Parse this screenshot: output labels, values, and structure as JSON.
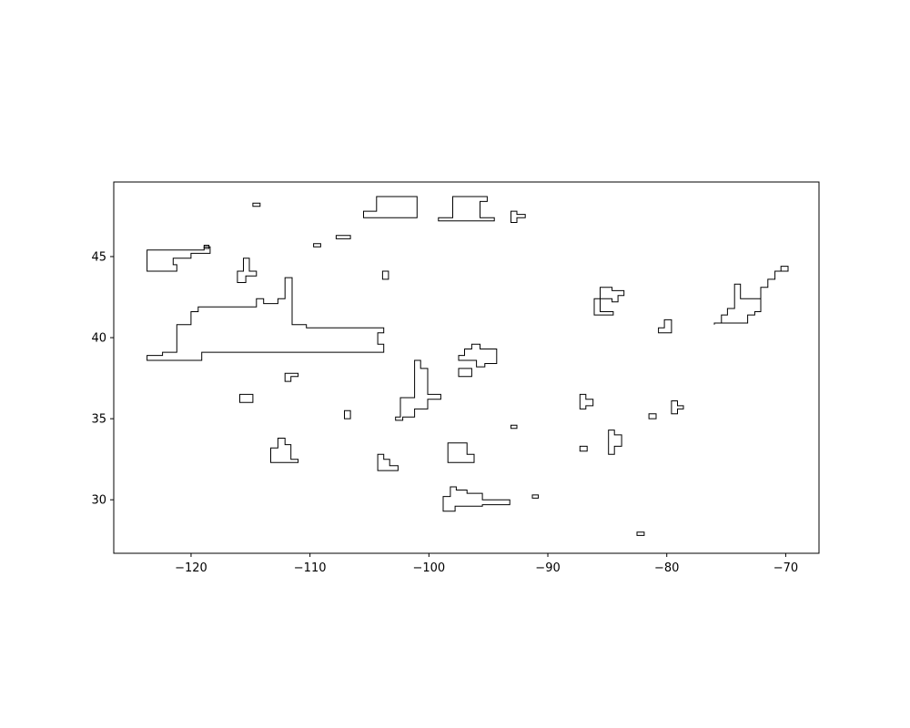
{
  "chart_data": {
    "type": "map",
    "title": "",
    "xlabel": "",
    "ylabel": "",
    "xlim": [
      -126.5,
      -67.2
    ],
    "ylim": [
      26.7,
      49.6
    ],
    "xticks": [
      -120,
      -110,
      -100,
      -90,
      -80,
      -70
    ],
    "yticks": [
      30,
      35,
      40,
      45
    ],
    "xtick_labels": [
      "−120",
      "−110",
      "−100",
      "−90",
      "−80",
      "−70"
    ],
    "ytick_labels": [
      "30",
      "35",
      "40",
      "45"
    ],
    "grid": false,
    "line_color": "#000000",
    "background": "#ffffff",
    "shapes": [
      [
        [
          -123.7,
          45.4
        ],
        [
          -118.9,
          45.4
        ],
        [
          -118.9,
          45.6
        ],
        [
          -118.4,
          45.6
        ],
        [
          -118.4,
          45.2
        ],
        [
          -120.0,
          45.2
        ],
        [
          -120.0,
          44.9
        ],
        [
          -121.5,
          44.9
        ],
        [
          -121.5,
          44.5
        ],
        [
          -121.2,
          44.5
        ],
        [
          -121.2,
          44.1
        ],
        [
          -123.7,
          44.1
        ]
      ],
      [
        [
          -118.5,
          45.7
        ],
        [
          -118.5,
          45.5
        ],
        [
          -118.9,
          45.5
        ],
        [
          -118.9,
          45.7
        ]
      ],
      [
        [
          -114.8,
          48.3
        ],
        [
          -114.2,
          48.3
        ],
        [
          -114.2,
          48.1
        ],
        [
          -114.8,
          48.1
        ]
      ],
      [
        [
          -116.1,
          44.1
        ],
        [
          -115.6,
          44.1
        ],
        [
          -115.6,
          44.9
        ],
        [
          -115.1,
          44.9
        ],
        [
          -115.1,
          44.1
        ],
        [
          -114.5,
          44.1
        ],
        [
          -114.5,
          43.8
        ],
        [
          -115.4,
          43.8
        ],
        [
          -115.4,
          43.4
        ],
        [
          -116.1,
          43.4
        ]
      ],
      [
        [
          -123.7,
          38.9
        ],
        [
          -122.4,
          38.9
        ],
        [
          -122.4,
          39.1
        ],
        [
          -121.2,
          39.1
        ],
        [
          -121.2,
          40.8
        ],
        [
          -120.0,
          40.8
        ],
        [
          -120.0,
          41.6
        ],
        [
          -119.4,
          41.6
        ],
        [
          -119.4,
          41.9
        ],
        [
          -114.5,
          41.9
        ],
        [
          -114.5,
          42.4
        ],
        [
          -113.9,
          42.4
        ],
        [
          -113.9,
          42.1
        ],
        [
          -112.7,
          42.1
        ],
        [
          -112.7,
          42.4
        ],
        [
          -112.1,
          42.4
        ],
        [
          -112.1,
          43.7
        ],
        [
          -111.5,
          43.7
        ],
        [
          -111.5,
          40.8
        ],
        [
          -110.3,
          40.8
        ],
        [
          -110.3,
          40.6
        ],
        [
          -103.8,
          40.6
        ],
        [
          -103.8,
          40.3
        ],
        [
          -104.3,
          40.3
        ],
        [
          -104.3,
          39.6
        ],
        [
          -103.8,
          39.6
        ],
        [
          -103.8,
          39.1
        ],
        [
          -119.1,
          39.1
        ],
        [
          -119.1,
          38.6
        ],
        [
          -123.7,
          38.6
        ]
      ],
      [
        [
          -112.1,
          37.8
        ],
        [
          -111.0,
          37.8
        ],
        [
          -111.0,
          37.6
        ],
        [
          -111.6,
          37.6
        ],
        [
          -111.6,
          37.3
        ],
        [
          -112.1,
          37.3
        ]
      ],
      [
        [
          -115.9,
          36.5
        ],
        [
          -114.8,
          36.5
        ],
        [
          -114.8,
          36.0
        ],
        [
          -115.9,
          36.0
        ]
      ],
      [
        [
          -109.7,
          45.8
        ],
        [
          -109.1,
          45.8
        ],
        [
          -109.1,
          45.6
        ],
        [
          -109.7,
          45.6
        ]
      ],
      [
        [
          -107.8,
          46.3
        ],
        [
          -106.6,
          46.3
        ],
        [
          -106.6,
          46.1
        ],
        [
          -107.8,
          46.1
        ]
      ],
      [
        [
          -105.5,
          47.8
        ],
        [
          -104.4,
          47.8
        ],
        [
          -104.4,
          48.7
        ],
        [
          -101.0,
          48.7
        ],
        [
          -101.0,
          47.4
        ],
        [
          -105.5,
          47.4
        ]
      ],
      [
        [
          -103.9,
          44.1
        ],
        [
          -103.4,
          44.1
        ],
        [
          -103.4,
          43.6
        ],
        [
          -103.9,
          43.6
        ]
      ],
      [
        [
          -99.2,
          47.4
        ],
        [
          -98.0,
          47.4
        ],
        [
          -98.0,
          48.7
        ],
        [
          -95.1,
          48.7
        ],
        [
          -95.1,
          48.4
        ],
        [
          -95.7,
          48.4
        ],
        [
          -95.7,
          47.4
        ],
        [
          -94.5,
          47.4
        ],
        [
          -94.5,
          47.2
        ],
        [
          -99.2,
          47.2
        ]
      ],
      [
        [
          -93.1,
          47.8
        ],
        [
          -92.6,
          47.8
        ],
        [
          -92.6,
          47.6
        ],
        [
          -91.9,
          47.6
        ],
        [
          -91.9,
          47.4
        ],
        [
          -92.6,
          47.4
        ],
        [
          -92.6,
          47.1
        ],
        [
          -93.1,
          47.1
        ]
      ],
      [
        [
          -113.3,
          33.2
        ],
        [
          -112.7,
          33.2
        ],
        [
          -112.7,
          33.8
        ],
        [
          -112.1,
          33.8
        ],
        [
          -112.1,
          33.4
        ],
        [
          -111.6,
          33.4
        ],
        [
          -111.6,
          32.5
        ],
        [
          -111.0,
          32.5
        ],
        [
          -111.0,
          32.3
        ],
        [
          -113.3,
          32.3
        ]
      ],
      [
        [
          -107.1,
          35.5
        ],
        [
          -106.6,
          35.5
        ],
        [
          -106.6,
          35.0
        ],
        [
          -107.1,
          35.0
        ]
      ],
      [
        [
          -104.3,
          32.8
        ],
        [
          -103.8,
          32.8
        ],
        [
          -103.8,
          32.5
        ],
        [
          -103.3,
          32.5
        ],
        [
          -103.3,
          32.1
        ],
        [
          -102.6,
          32.1
        ],
        [
          -102.6,
          31.8
        ],
        [
          -104.3,
          31.8
        ]
      ],
      [
        [
          -101.2,
          38.6
        ],
        [
          -100.7,
          38.6
        ],
        [
          -100.7,
          38.1
        ],
        [
          -100.1,
          38.1
        ],
        [
          -100.1,
          36.5
        ],
        [
          -99.0,
          36.5
        ],
        [
          -99.0,
          36.2
        ],
        [
          -100.1,
          36.2
        ],
        [
          -100.1,
          35.6
        ],
        [
          -101.2,
          35.6
        ],
        [
          -101.2,
          35.1
        ],
        [
          -102.2,
          35.1
        ],
        [
          -102.2,
          34.9
        ],
        [
          -102.8,
          34.9
        ],
        [
          -102.8,
          35.1
        ],
        [
          -102.4,
          35.1
        ],
        [
          -102.4,
          36.3
        ],
        [
          -101.2,
          36.3
        ]
      ],
      [
        [
          -97.5,
          38.9
        ],
        [
          -97.0,
          38.9
        ],
        [
          -97.0,
          39.3
        ],
        [
          -96.4,
          39.3
        ],
        [
          -96.4,
          39.6
        ],
        [
          -95.7,
          39.6
        ],
        [
          -95.7,
          39.3
        ],
        [
          -94.3,
          39.3
        ],
        [
          -94.3,
          38.4
        ],
        [
          -95.3,
          38.4
        ],
        [
          -95.3,
          38.2
        ],
        [
          -96.0,
          38.2
        ],
        [
          -96.0,
          38.6
        ],
        [
          -97.5,
          38.6
        ]
      ],
      [
        [
          -97.5,
          38.1
        ],
        [
          -96.4,
          38.1
        ],
        [
          -96.4,
          37.6
        ],
        [
          -97.5,
          37.6
        ]
      ],
      [
        [
          -98.4,
          33.5
        ],
        [
          -96.8,
          33.5
        ],
        [
          -96.8,
          32.8
        ],
        [
          -96.2,
          32.8
        ],
        [
          -96.2,
          32.3
        ],
        [
          -98.4,
          32.3
        ]
      ],
      [
        [
          -98.8,
          30.2
        ],
        [
          -98.2,
          30.2
        ],
        [
          -98.2,
          30.8
        ],
        [
          -97.7,
          30.8
        ],
        [
          -97.7,
          30.6
        ],
        [
          -96.8,
          30.6
        ],
        [
          -96.8,
          30.4
        ],
        [
          -95.5,
          30.4
        ],
        [
          -95.5,
          30.0
        ],
        [
          -93.2,
          30.0
        ],
        [
          -93.2,
          29.7
        ],
        [
          -95.5,
          29.7
        ],
        [
          -95.5,
          29.6
        ],
        [
          -97.8,
          29.6
        ],
        [
          -97.8,
          29.3
        ],
        [
          -98.8,
          29.3
        ]
      ],
      [
        [
          -93.1,
          34.6
        ],
        [
          -92.6,
          34.6
        ],
        [
          -92.6,
          34.4
        ],
        [
          -93.1,
          34.4
        ]
      ],
      [
        [
          -91.3,
          30.3
        ],
        [
          -90.8,
          30.3
        ],
        [
          -90.8,
          30.1
        ],
        [
          -91.3,
          30.1
        ]
      ],
      [
        [
          -87.3,
          36.5
        ],
        [
          -86.8,
          36.5
        ],
        [
          -86.8,
          36.2
        ],
        [
          -86.2,
          36.2
        ],
        [
          -86.2,
          35.8
        ],
        [
          -86.8,
          35.8
        ],
        [
          -86.8,
          35.6
        ],
        [
          -87.3,
          35.6
        ]
      ],
      [
        [
          -87.3,
          33.3
        ],
        [
          -86.7,
          33.3
        ],
        [
          -86.7,
          33.0
        ],
        [
          -87.3,
          33.0
        ]
      ],
      [
        [
          -84.9,
          34.3
        ],
        [
          -84.4,
          34.3
        ],
        [
          -84.4,
          34.0
        ],
        [
          -83.8,
          34.0
        ],
        [
          -83.8,
          33.3
        ],
        [
          -84.4,
          33.3
        ],
        [
          -84.4,
          32.8
        ],
        [
          -84.9,
          32.8
        ]
      ],
      [
        [
          -86.1,
          42.4
        ],
        [
          -85.6,
          42.4
        ],
        [
          -85.6,
          43.1
        ],
        [
          -84.6,
          43.1
        ],
        [
          -84.6,
          42.9
        ],
        [
          -83.6,
          42.9
        ],
        [
          -83.6,
          42.6
        ],
        [
          -84.1,
          42.6
        ],
        [
          -84.1,
          42.2
        ],
        [
          -84.6,
          42.2
        ],
        [
          -84.6,
          42.4
        ],
        [
          -85.6,
          42.4
        ],
        [
          -85.6,
          41.6
        ],
        [
          -84.5,
          41.6
        ],
        [
          -84.5,
          41.4
        ],
        [
          -86.1,
          41.4
        ]
      ],
      [
        [
          -81.5,
          35.3
        ],
        [
          -80.9,
          35.3
        ],
        [
          -80.9,
          35.0
        ],
        [
          -81.5,
          35.0
        ]
      ],
      [
        [
          -82.5,
          28.0
        ],
        [
          -81.9,
          28.0
        ],
        [
          -81.9,
          27.8
        ],
        [
          -82.5,
          27.8
        ]
      ],
      [
        [
          -80.7,
          40.6
        ],
        [
          -80.2,
          40.6
        ],
        [
          -80.2,
          41.1
        ],
        [
          -79.6,
          41.1
        ],
        [
          -79.6,
          40.3
        ],
        [
          -80.7,
          40.3
        ]
      ],
      [
        [
          -79.6,
          36.1
        ],
        [
          -79.1,
          36.1
        ],
        [
          -79.1,
          35.8
        ],
        [
          -78.6,
          35.8
        ],
        [
          -78.6,
          35.6
        ],
        [
          -79.1,
          35.6
        ],
        [
          -79.1,
          35.3
        ],
        [
          -79.6,
          35.3
        ]
      ],
      [
        [
          -76.0,
          40.9
        ],
        [
          -75.4,
          40.9
        ],
        [
          -75.4,
          41.4
        ],
        [
          -74.9,
          41.4
        ],
        [
          -74.9,
          41.8
        ],
        [
          -74.3,
          41.8
        ],
        [
          -74.3,
          43.3
        ],
        [
          -73.8,
          43.3
        ],
        [
          -73.8,
          42.4
        ],
        [
          -72.1,
          42.4
        ],
        [
          -72.1,
          43.1
        ],
        [
          -71.5,
          43.1
        ],
        [
          -71.5,
          43.6
        ],
        [
          -70.9,
          43.6
        ],
        [
          -70.9,
          44.1
        ],
        [
          -70.4,
          44.1
        ],
        [
          -70.4,
          44.4
        ],
        [
          -69.8,
          44.4
        ],
        [
          -69.8,
          44.1
        ],
        [
          -70.9,
          44.1
        ],
        [
          -70.9,
          43.6
        ],
        [
          -71.5,
          43.6
        ],
        [
          -71.5,
          43.1
        ],
        [
          -72.1,
          43.1
        ],
        [
          -72.1,
          41.6
        ],
        [
          -72.6,
          41.6
        ],
        [
          -72.6,
          41.4
        ],
        [
          -73.2,
          41.4
        ],
        [
          -73.2,
          40.9
        ],
        [
          -76.0,
          40.9
        ],
        [
          -76.0,
          40.8
        ]
      ]
    ]
  }
}
